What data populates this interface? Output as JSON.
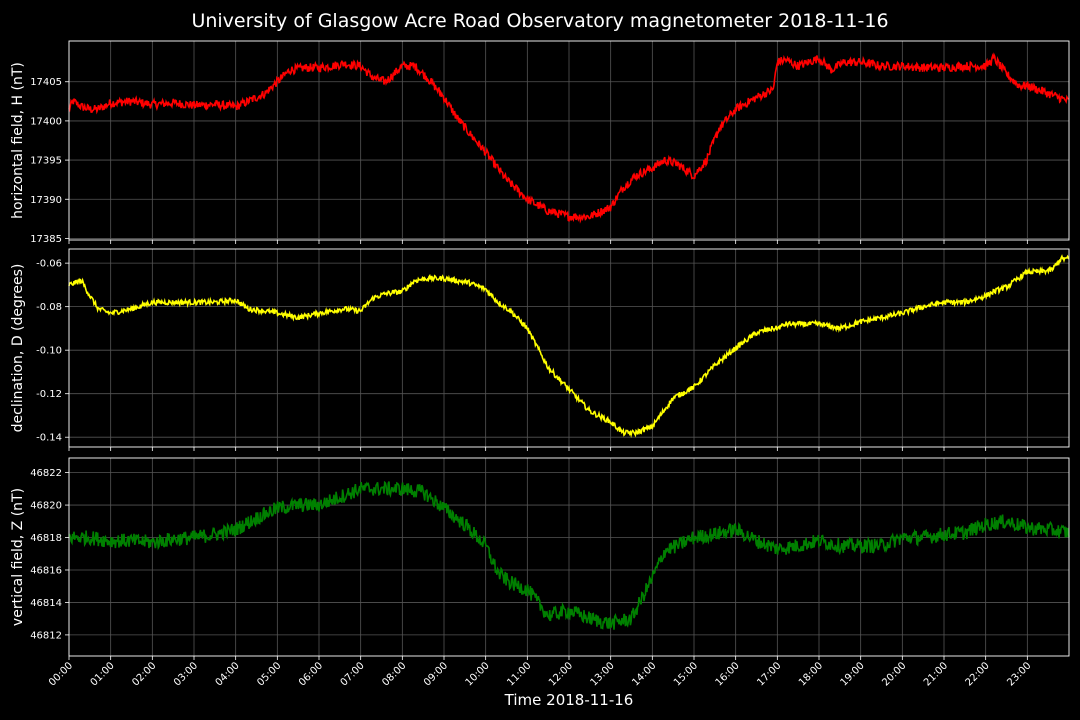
{
  "title": "University of Glasgow Acre Road Observatory magnetometer 2018-11-16",
  "colors": {
    "background": "#000000",
    "axes": "#ffffff",
    "grid": "#555555"
  },
  "chart_data": [
    {
      "type": "line",
      "ylabel": "horizontal field, H (nT)",
      "color": "#ff0000",
      "ylim": [
        17384.8,
        17410.2
      ],
      "yticks": [
        17385,
        17390,
        17395,
        17400,
        17405
      ],
      "xlim": [
        0,
        24
      ],
      "noise": 0.55,
      "series": [
        {
          "x": [
            0,
            0.1,
            0.3,
            0.5,
            0.7,
            1,
            1.5,
            2,
            2.5,
            3,
            3.5,
            4,
            4.3,
            4.7,
            5,
            5.3,
            5.7,
            6,
            6.3,
            6.6,
            7,
            7.3,
            7.6,
            8,
            8.3,
            8.6,
            9,
            9.3,
            9.6,
            10,
            10.5,
            11,
            11.5,
            12,
            12.5,
            13,
            13.3,
            13.6,
            14,
            14.3,
            14.6,
            15,
            15.3,
            15.6,
            16,
            16.5,
            16.9,
            17,
            17.2,
            17.5,
            18,
            18.3,
            18.6,
            19,
            19.5,
            20,
            20.5,
            21,
            21.5,
            22,
            22.2,
            22.5,
            22.8,
            23,
            23.5,
            24
          ],
          "y": [
            17401.5,
            17402.5,
            17401.8,
            17401.5,
            17401.5,
            17402.3,
            17402.5,
            17402.1,
            17402.3,
            17402.0,
            17402.1,
            17401.8,
            17402.5,
            17403.5,
            17405.0,
            17406.5,
            17406.8,
            17406.8,
            17407.0,
            17407.3,
            17407.0,
            17405.5,
            17405.0,
            17407.0,
            17407.0,
            17405.5,
            17403.0,
            17400.5,
            17398.5,
            17396.0,
            17392.5,
            17390.0,
            17388.5,
            17387.8,
            17387.8,
            17389.0,
            17391.5,
            17393.0,
            17394.0,
            17395.0,
            17394.5,
            17393.0,
            17395.0,
            17399.0,
            17401.5,
            17403.0,
            17404.0,
            17407.5,
            17407.8,
            17407.0,
            17408.0,
            17406.5,
            17407.5,
            17407.5,
            17407.0,
            17407.0,
            17406.8,
            17406.8,
            17407.0,
            17407.0,
            17408.0,
            17406.0,
            17404.5,
            17404.5,
            17403.5,
            17402.5
          ]
        }
      ]
    },
    {
      "type": "line",
      "ylabel": "declination, D (degrees)",
      "color": "#ffff00",
      "ylim": [
        -0.1445,
        -0.0535
      ],
      "yticks": [
        -0.06,
        -0.08,
        -0.1,
        -0.12,
        -0.14
      ],
      "xlim": [
        0,
        24
      ],
      "noise": 0.0012,
      "series": [
        {
          "x": [
            0,
            0.3,
            0.5,
            0.7,
            1,
            1.5,
            2,
            2.5,
            3,
            3.5,
            4,
            4.3,
            4.7,
            5,
            5.5,
            6,
            6.3,
            6.6,
            7,
            7.3,
            7.6,
            8,
            8.3,
            8.6,
            9,
            9.3,
            9.6,
            10,
            10.3,
            10.6,
            11,
            11.5,
            12,
            12.5,
            13,
            13.3,
            13.6,
            14,
            14.5,
            15,
            15.5,
            16,
            16.5,
            16.9,
            17,
            17.2,
            17.5,
            18,
            18.5,
            19,
            19.5,
            20,
            20.5,
            21,
            21.5,
            22,
            22.2,
            22.5,
            23,
            23.3,
            23.6,
            23.8,
            24
          ],
          "y": [
            -0.07,
            -0.068,
            -0.075,
            -0.081,
            -0.083,
            -0.081,
            -0.078,
            -0.078,
            -0.078,
            -0.078,
            -0.077,
            -0.081,
            -0.082,
            -0.083,
            -0.085,
            -0.083,
            -0.082,
            -0.081,
            -0.082,
            -0.076,
            -0.074,
            -0.073,
            -0.068,
            -0.067,
            -0.067,
            -0.068,
            -0.069,
            -0.072,
            -0.078,
            -0.082,
            -0.09,
            -0.108,
            -0.118,
            -0.128,
            -0.133,
            -0.138,
            -0.138,
            -0.135,
            -0.122,
            -0.117,
            -0.107,
            -0.099,
            -0.092,
            -0.09,
            -0.09,
            -0.088,
            -0.088,
            -0.088,
            -0.09,
            -0.087,
            -0.085,
            -0.083,
            -0.08,
            -0.078,
            -0.078,
            -0.075,
            -0.073,
            -0.071,
            -0.064,
            -0.064,
            -0.063,
            -0.058,
            -0.058
          ]
        }
      ]
    },
    {
      "type": "line",
      "ylabel": "vertical field, Z (nT)",
      "color": "#008000",
      "ylim": [
        46810.7,
        46822.9
      ],
      "yticks": [
        46812,
        46814,
        46816,
        46818,
        46820,
        46822
      ],
      "xlim": [
        0,
        24
      ],
      "noise": 0.45,
      "series": [
        {
          "x": [
            0,
            0.5,
            1,
            1.5,
            2,
            2.5,
            3,
            3.5,
            4,
            4.5,
            5,
            5.5,
            6,
            6.5,
            7,
            7.5,
            8,
            8.5,
            9,
            9.5,
            10,
            10.3,
            10.6,
            11,
            11.5,
            12,
            12.5,
            13,
            13.5,
            13.8,
            14,
            14.3,
            14.6,
            15,
            15.5,
            16,
            16.5,
            17,
            17.5,
            18,
            18.5,
            19,
            19.5,
            20,
            20.5,
            21,
            21.5,
            22,
            22.5,
            23,
            23.5,
            24
          ],
          "y": [
            46818.0,
            46818.0,
            46817.8,
            46817.8,
            46817.7,
            46817.9,
            46818.0,
            46818.2,
            46818.5,
            46819.2,
            46819.8,
            46820.0,
            46820.0,
            46820.5,
            46821.0,
            46821.0,
            46821.0,
            46820.8,
            46819.8,
            46818.8,
            46817.5,
            46815.8,
            46815.2,
            46814.8,
            46813.2,
            46813.5,
            46813.0,
            46812.7,
            46813.0,
            46814.5,
            46815.5,
            46817.2,
            46817.5,
            46818.0,
            46818.2,
            46818.5,
            46817.8,
            46817.3,
            46817.5,
            46817.8,
            46817.5,
            46817.5,
            46817.5,
            46818.0,
            46818.0,
            46818.2,
            46818.3,
            46818.8,
            46819.0,
            46818.6,
            46818.5,
            46818.3
          ]
        }
      ]
    }
  ],
  "xticks": [
    "00:00",
    "01:00",
    "02:00",
    "03:00",
    "04:00",
    "05:00",
    "06:00",
    "07:00",
    "08:00",
    "09:00",
    "10:00",
    "11:00",
    "12:00",
    "13:00",
    "14:00",
    "15:00",
    "16:00",
    "17:00",
    "18:00",
    "19:00",
    "20:00",
    "21:00",
    "22:00",
    "23:00"
  ],
  "xlabel": "Time 2018-11-16"
}
